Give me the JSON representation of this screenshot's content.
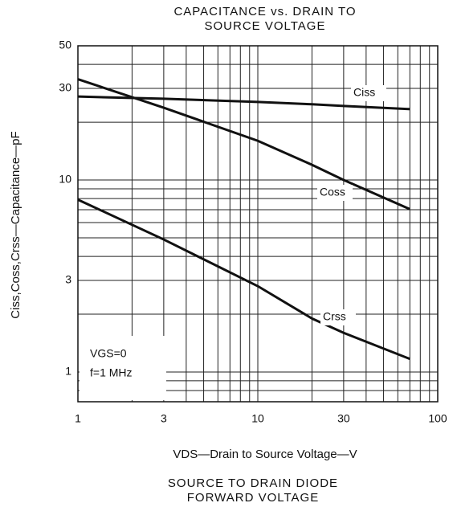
{
  "chart_data": {
    "type": "line",
    "title": [
      "CAPACITANCE vs. DRAIN TO",
      "SOURCE VOLTAGE"
    ],
    "x_label": "VDS—Drain to Source Voltage—V",
    "y_label": "Ciss,Coss,Crss—Capacitance—pF",
    "caption": [
      "SOURCE TO DRAIN DIODE",
      "FORWARD VOLTAGE"
    ],
    "annotations": [
      "VGS=0",
      "f=1 MHz"
    ],
    "x_scale": "log",
    "y_scale": "log",
    "grid": true,
    "xlim": [
      1,
      100
    ],
    "ylim": [
      0.7,
      50
    ],
    "xticks": [
      1,
      3,
      10,
      30,
      100
    ],
    "yticks": [
      1,
      3,
      10,
      30,
      50
    ],
    "x_minor_ticks": [
      2,
      4,
      5,
      6,
      7,
      8,
      9,
      20,
      40,
      50,
      60,
      70,
      80,
      90
    ],
    "y_minor_ticks": [
      0.8,
      0.9,
      2,
      4,
      5,
      6,
      7,
      8,
      9,
      20,
      40
    ],
    "x": [
      1,
      3,
      10,
      20,
      30,
      70
    ],
    "series": [
      {
        "name": "Ciss",
        "color": "#111111",
        "values": [
          27.2,
          26.5,
          25.5,
          24.8,
          24.3,
          23.4
        ]
      },
      {
        "name": "Coss",
        "color": "#111111",
        "values": [
          33.5,
          23.8,
          16,
          12,
          10,
          7.05
        ]
      },
      {
        "name": "Crss",
        "color": "#111111",
        "values": [
          7.9,
          4.9,
          2.8,
          1.9,
          1.6,
          1.17
        ]
      }
    ]
  }
}
